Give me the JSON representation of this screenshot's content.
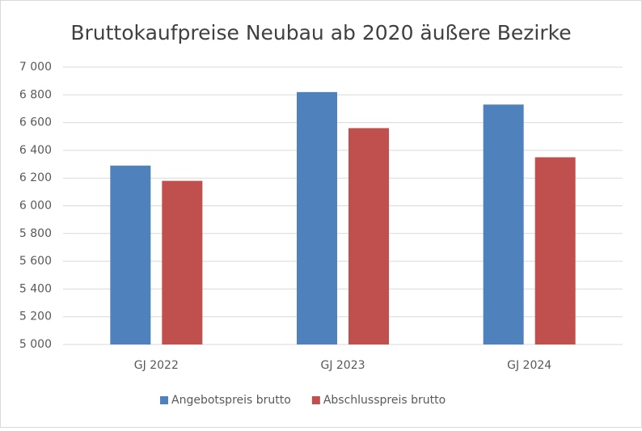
{
  "chart_data": {
    "type": "bar",
    "title": "Bruttokaufpreise Neubau ab 2020 äußere Bezirke",
    "categories": [
      "GJ 2022",
      "GJ 2023",
      "GJ 2024"
    ],
    "series": [
      {
        "name": "Angebotspreis brutto",
        "color": "#4f81bd",
        "values": [
          6290,
          6820,
          6730
        ]
      },
      {
        "name": "Abschlusspreis brutto",
        "color": "#c0504d",
        "values": [
          6180,
          6560,
          6350
        ]
      }
    ],
    "ylim": [
      5000,
      7000
    ],
    "yticks": [
      {
        "value": 5000,
        "label": "5 000"
      },
      {
        "value": 5200,
        "label": "5 200"
      },
      {
        "value": 5400,
        "label": "5 400"
      },
      {
        "value": 5600,
        "label": "5 600"
      },
      {
        "value": 5800,
        "label": "5 800"
      },
      {
        "value": 6000,
        "label": "6 000"
      },
      {
        "value": 6200,
        "label": "6 200"
      },
      {
        "value": 6400,
        "label": "6 400"
      },
      {
        "value": 6600,
        "label": "6 600"
      },
      {
        "value": 6800,
        "label": "6 800"
      },
      {
        "value": 7000,
        "label": "7 000"
      }
    ],
    "grid": true,
    "legend": "bottom"
  }
}
